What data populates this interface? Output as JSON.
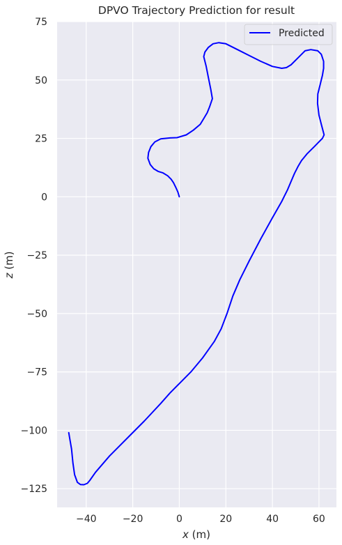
{
  "chart_data": {
    "type": "line",
    "title": "DPVO Trajectory Prediction for result",
    "xlabel_var": "x",
    "xlabel_unit": " (m)",
    "ylabel_var": "z",
    "ylabel_unit": " (m)",
    "xlim": [
      -52.5,
      67.5
    ],
    "ylim": [
      -133,
      75
    ],
    "xticks": [
      -40,
      -20,
      0,
      20,
      40,
      60
    ],
    "yticks": [
      75,
      50,
      25,
      0,
      -25,
      -50,
      -75,
      -100,
      -125
    ],
    "xtick_labels": [
      "−40",
      "−20",
      "0",
      "20",
      "40",
      "60"
    ],
    "ytick_labels": [
      "75",
      "50",
      "25",
      "0",
      "−25",
      "−50",
      "−75",
      "−100",
      "−125"
    ],
    "grid": true,
    "background": "#EAEAF2",
    "legend": {
      "placement": "top-right"
    },
    "series": [
      {
        "name": "Predicted",
        "color": "#0000FF",
        "points": [
          [
            0,
            0
          ],
          [
            -0.6,
            2
          ],
          [
            -1.5,
            4
          ],
          [
            -2.5,
            6
          ],
          [
            -3.5,
            7.5
          ],
          [
            -5,
            9
          ],
          [
            -7,
            10.2
          ],
          [
            -9,
            10.8
          ],
          [
            -11,
            12
          ],
          [
            -12.5,
            13.8
          ],
          [
            -13.5,
            16.5
          ],
          [
            -13.2,
            19
          ],
          [
            -12.2,
            21.5
          ],
          [
            -10.5,
            23.5
          ],
          [
            -8,
            24.8
          ],
          [
            -4,
            25.2
          ],
          [
            -1,
            25.3
          ],
          [
            3,
            26.5
          ],
          [
            6,
            28.5
          ],
          [
            9,
            31
          ],
          [
            10.5,
            33.5
          ],
          [
            12,
            36
          ],
          [
            13,
            38.5
          ],
          [
            14.2,
            42
          ],
          [
            13.5,
            46
          ],
          [
            12.5,
            51
          ],
          [
            11.5,
            56
          ],
          [
            10.5,
            60
          ],
          [
            11,
            62
          ],
          [
            12.5,
            64
          ],
          [
            14.5,
            65.5
          ],
          [
            17,
            66
          ],
          [
            20,
            65.5
          ],
          [
            25,
            63
          ],
          [
            30,
            60.5
          ],
          [
            35,
            58
          ],
          [
            40,
            55.8
          ],
          [
            44,
            55
          ],
          [
            46,
            55.3
          ],
          [
            48,
            56.5
          ],
          [
            51,
            59.5
          ],
          [
            54,
            62.5
          ],
          [
            56.5,
            63
          ],
          [
            59.5,
            62.5
          ],
          [
            61,
            61
          ],
          [
            62,
            58
          ],
          [
            62,
            55
          ],
          [
            61.5,
            52
          ],
          [
            60.5,
            48
          ],
          [
            59.5,
            44
          ],
          [
            59.4,
            40
          ],
          [
            60,
            35
          ],
          [
            61,
            31
          ],
          [
            62.2,
            26.5
          ],
          [
            61.5,
            25
          ],
          [
            60,
            23.5
          ],
          [
            58,
            21.5
          ],
          [
            55,
            18.5
          ],
          [
            52.5,
            15.5
          ],
          [
            51,
            13
          ],
          [
            49.5,
            10
          ],
          [
            48,
            6.5
          ],
          [
            46.5,
            3
          ],
          [
            45,
            0
          ],
          [
            44,
            -2
          ],
          [
            40,
            -9
          ],
          [
            35,
            -18
          ],
          [
            30,
            -27.5
          ],
          [
            26,
            -35.5
          ],
          [
            23,
            -42.5
          ],
          [
            20.5,
            -50
          ],
          [
            18,
            -56.5
          ],
          [
            15,
            -62
          ],
          [
            10,
            -69
          ],
          [
            5,
            -75
          ],
          [
            0,
            -80
          ],
          [
            -4,
            -84
          ],
          [
            -8,
            -88.5
          ],
          [
            -15,
            -96
          ],
          [
            -22,
            -103
          ],
          [
            -30,
            -111
          ],
          [
            -36,
            -118
          ],
          [
            -38.5,
            -121.5
          ],
          [
            -39.5,
            -122.7
          ],
          [
            -41,
            -123.3
          ],
          [
            -42.5,
            -123.2
          ],
          [
            -43.8,
            -122.3
          ],
          [
            -45,
            -119
          ],
          [
            -45.7,
            -114
          ],
          [
            -46.3,
            -108
          ],
          [
            -47,
            -104
          ],
          [
            -47.5,
            -101
          ]
        ]
      }
    ]
  }
}
